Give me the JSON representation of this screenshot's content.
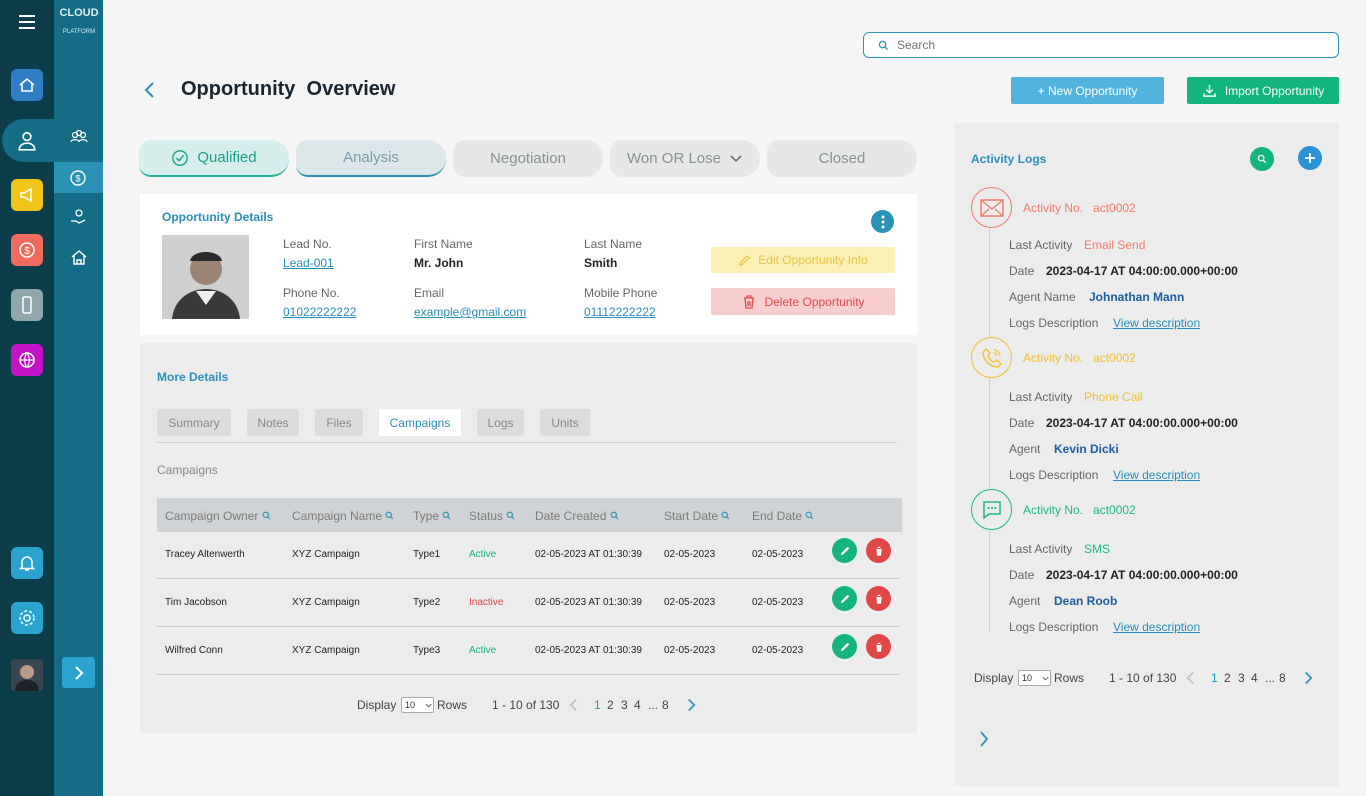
{
  "brand": {
    "logo_text": "CLOUD",
    "logo_sub": "PLATFORM"
  },
  "search": {
    "placeholder": "Search"
  },
  "page": {
    "title": "Opportunity  Overview"
  },
  "actions": {
    "new_label": "+ New Opportunity",
    "import_label": "Import Opportunity"
  },
  "stages": [
    {
      "label": "Qualified"
    },
    {
      "label": "Analysis"
    },
    {
      "label": "Negotiation"
    },
    {
      "label": "Won OR Lose"
    },
    {
      "label": "Closed"
    }
  ],
  "details": {
    "heading": "Opportunity Details",
    "lead_no_label": "Lead No.",
    "lead_no": "Lead-001",
    "first_name_label": "First Name",
    "first_name": "Mr. John",
    "last_name_label": "Last Name",
    "last_name": "Smith",
    "phone_label": "Phone No.",
    "phone": "01022222222",
    "email_label": "Email",
    "email": "example@gmail.com",
    "mobile_label": "Mobile Phone",
    "mobile": "01112222222",
    "edit_label": "Edit Opportunity Info",
    "delete_label": "Delete Opportunity"
  },
  "more": {
    "heading": "More Details",
    "tabs": [
      "Summary",
      "Notes",
      "Files",
      "Campaigns",
      "Logs",
      "Units"
    ],
    "active_tab": "Campaigns",
    "section_title": "Campaigns"
  },
  "table": {
    "headers": [
      "Campaign Owner",
      "Campaign Name",
      "Type",
      "Status",
      "Date Created",
      "Start Date",
      "End Date"
    ],
    "rows": [
      {
        "owner": "Tracey Altenwerth",
        "name": "XYZ Campaign",
        "type": "Type1",
        "status": "Active",
        "created": "02-05-2023 AT 01:30:39",
        "start": "02-05-2023",
        "end": "02-05-2023"
      },
      {
        "owner": "Tim Jacobson",
        "name": "XYZ Campaign",
        "type": "Type2",
        "status": "Inactive",
        "created": "02-05-2023 AT 01:30:39",
        "start": "02-05-2023",
        "end": "02-05-2023"
      },
      {
        "owner": "Wilfred Conn",
        "name": "XYZ Campaign",
        "type": "Type3",
        "status": "Active",
        "created": "02-05-2023 AT 01:30:39",
        "start": "02-05-2023",
        "end": "02-05-2023"
      }
    ]
  },
  "pagination": {
    "display": "Display",
    "rows_value": "10",
    "rows_label": "Rows",
    "range": "1 - 10 of 130",
    "pages": [
      "1",
      "2",
      "3",
      "4",
      "...",
      "8"
    ]
  },
  "logs": {
    "heading": "Activity Logs",
    "entries": [
      {
        "no_label": "Activity No.",
        "no": "act0002",
        "last_label": "Last Activity",
        "last": "Email Send",
        "date_label": "Date",
        "date": "2023-04-17 AT 04:00:00.000+00:00",
        "agent_label": "Agent Name",
        "agent": "Johnathan Mann",
        "desc_label": "Logs Description",
        "desc_link": "View description",
        "color": "#f07b6e"
      },
      {
        "no_label": "Activity No.",
        "no": "act0002",
        "last_label": "Last Activity",
        "last": "Phone Call",
        "date_label": "Date",
        "date": "2023-04-17 AT 04:00:00.000+00:00",
        "agent_label": "Agent",
        "agent": "Kevin Dicki",
        "desc_label": "Logs Description",
        "desc_link": "View description",
        "color": "#f1c232"
      },
      {
        "no_label": "Activity No.",
        "no": "act0002",
        "last_label": "Last Activity",
        "last": "SMS",
        "date_label": "Date",
        "date": "2023-04-17 AT 04:00:00.000+00:00",
        "agent_label": "Agent",
        "agent": "Dean Roob",
        "desc_label": "Logs Description",
        "desc_link": "View description",
        "color": "#1cb889"
      }
    ]
  },
  "colors": {
    "primary": "#2a93b5",
    "green": "#14b57c",
    "red": "#e04848",
    "sidebar": "#0d3c4a"
  }
}
